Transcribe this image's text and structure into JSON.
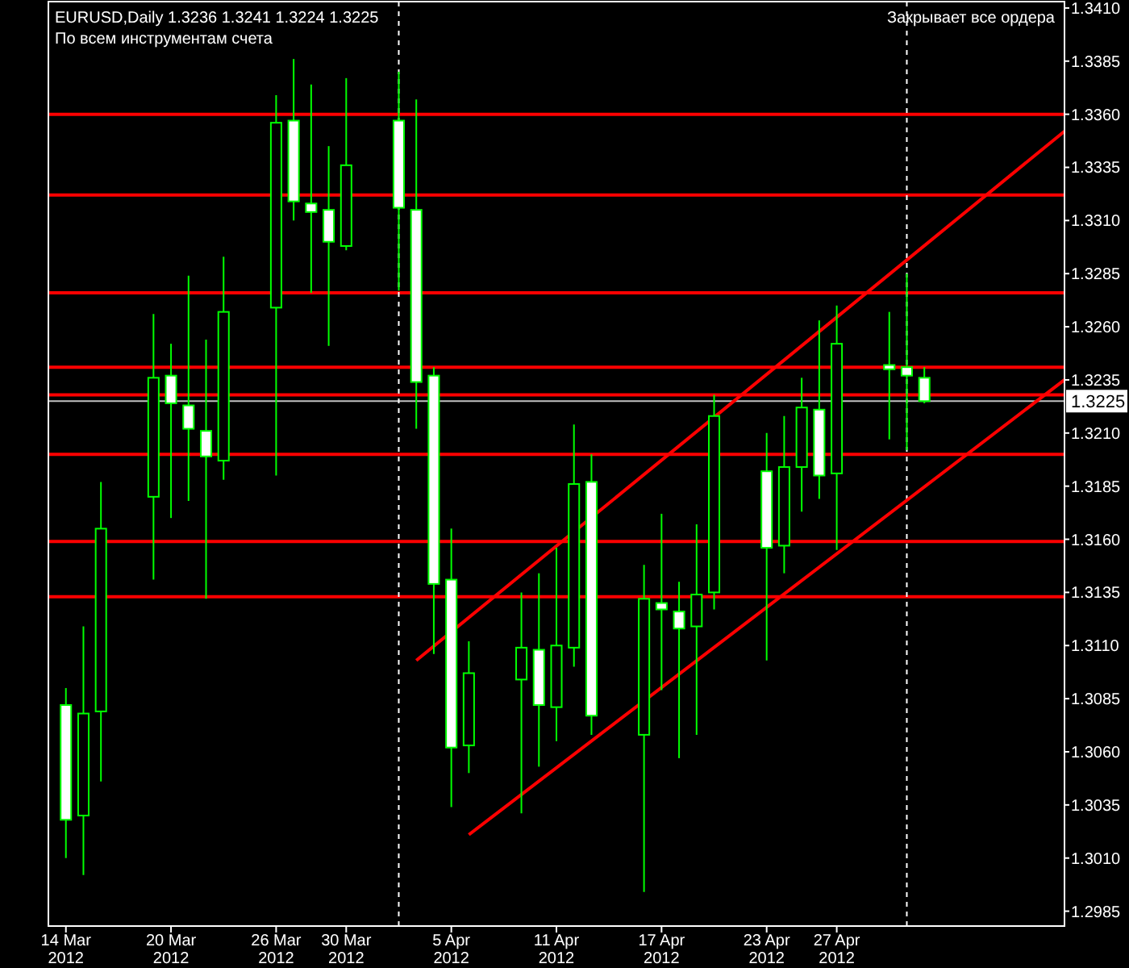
{
  "chart_data": {
    "type": "candlestick",
    "title": "EURUSD,Daily  1.3236 1.3241 1.3224 1.3225",
    "annotations": [
      "По всем инструментам счета",
      "Закрывает все ордера"
    ],
    "x": [
      "2012-03-14",
      "2012-03-15",
      "2012-03-16",
      "2012-03-19",
      "2012-03-20",
      "2012-03-21",
      "2012-03-22",
      "2012-03-23",
      "2012-03-26",
      "2012-03-27",
      "2012-03-28",
      "2012-03-29",
      "2012-03-30",
      "2012-04-02",
      "2012-04-03",
      "2012-04-04",
      "2012-04-05",
      "2012-04-06",
      "2012-04-09",
      "2012-04-10",
      "2012-04-11",
      "2012-04-12",
      "2012-04-13",
      "2012-04-16",
      "2012-04-17",
      "2012-04-18",
      "2012-04-19",
      "2012-04-20",
      "2012-04-23",
      "2012-04-24",
      "2012-04-25",
      "2012-04-26",
      "2012-04-27",
      "2012-04-30",
      "2012-05-01",
      "2012-05-02"
    ],
    "ohlc": [
      [
        1.3082,
        1.309,
        1.301,
        1.3028
      ],
      [
        1.303,
        1.3119,
        1.3002,
        1.3078
      ],
      [
        1.3079,
        1.3187,
        1.3046,
        1.3165
      ],
      [
        1.318,
        1.3266,
        1.3141,
        1.3236
      ],
      [
        1.3237,
        1.3252,
        1.317,
        1.3224
      ],
      [
        1.3223,
        1.3284,
        1.3178,
        1.3212
      ],
      [
        1.3211,
        1.3254,
        1.3132,
        1.3199
      ],
      [
        1.3197,
        1.3293,
        1.3188,
        1.3267
      ],
      [
        1.3269,
        1.3369,
        1.319,
        1.3356
      ],
      [
        1.3357,
        1.3386,
        1.331,
        1.3319
      ],
      [
        1.3318,
        1.3374,
        1.3276,
        1.3314
      ],
      [
        1.3315,
        1.3345,
        1.3251,
        1.33
      ],
      [
        1.3298,
        1.3377,
        1.3296,
        1.3336
      ],
      [
        1.3357,
        1.338,
        1.3277,
        1.3316
      ],
      [
        1.3315,
        1.3367,
        1.3212,
        1.3234
      ],
      [
        1.3237,
        1.3241,
        1.3106,
        1.3139
      ],
      [
        1.3141,
        1.3165,
        1.3034,
        1.3062
      ],
      [
        1.3063,
        1.3112,
        1.305,
        1.3097
      ],
      [
        1.3094,
        1.3135,
        1.3031,
        1.3109
      ],
      [
        1.3108,
        1.3144,
        1.3053,
        1.3082
      ],
      [
        1.3081,
        1.3156,
        1.3065,
        1.311
      ],
      [
        1.3109,
        1.3214,
        1.31,
        1.3186
      ],
      [
        1.3187,
        1.32,
        1.3068,
        1.3077
      ],
      [
        1.3068,
        1.3148,
        1.2994,
        1.3132
      ],
      [
        1.313,
        1.3172,
        1.3089,
        1.3127
      ],
      [
        1.3126,
        1.314,
        1.3057,
        1.3118
      ],
      [
        1.3119,
        1.3167,
        1.3068,
        1.3134
      ],
      [
        1.3135,
        1.3228,
        1.3127,
        1.3218
      ],
      [
        1.3192,
        1.321,
        1.3103,
        1.3156
      ],
      [
        1.3157,
        1.3218,
        1.3144,
        1.3194
      ],
      [
        1.3194,
        1.3236,
        1.3173,
        1.3222
      ],
      [
        1.3221,
        1.3263,
        1.3179,
        1.319
      ],
      [
        1.3191,
        1.327,
        1.3155,
        1.3252
      ],
      [
        1.3242,
        1.3267,
        1.3207,
        1.324
      ],
      [
        1.3241,
        1.3285,
        1.3202,
        1.3237
      ],
      [
        1.3236,
        1.3241,
        1.3224,
        1.3225
      ]
    ],
    "color": "#00ff00",
    "series": [
      {
        "type": "line",
        "color": "#ff0000",
        "x": [
          "2012-04-03",
          "2012-05-10"
        ],
        "values": [
          1.3103,
          1.3352
        ]
      },
      {
        "type": "line",
        "color": "#ff0000",
        "x": [
          "2012-04-06",
          "2012-05-10"
        ],
        "values": [
          1.3021,
          1.3235
        ]
      }
    ],
    "xlim": [
      "2012-03-13",
      "2012-05-10"
    ],
    "xticks": [
      {
        "value": "2012-03-14",
        "label": "14 Mar 2012"
      },
      {
        "value": "2012-03-20",
        "label": "20 Mar 2012"
      },
      {
        "value": "2012-03-26",
        "label": "26 Mar 2012"
      },
      {
        "value": "2012-03-30",
        "label": "30 Mar 2012"
      },
      {
        "value": "2012-04-05",
        "label": "5 Apr 2012"
      },
      {
        "value": "2012-04-11",
        "label": "11 Apr 2012"
      },
      {
        "value": "2012-04-17",
        "label": "17 Apr 2012"
      },
      {
        "value": "2012-04-23",
        "label": "23 Apr 2012"
      },
      {
        "value": "2012-04-27",
        "label": "27 Apr 2012"
      }
    ],
    "ylim": [
      1.2978,
      1.3413
    ],
    "yticks": [
      {
        "value": 1.2985,
        "label": "1.2985"
      },
      {
        "value": 1.301,
        "label": "1.3010"
      },
      {
        "value": 1.3035,
        "label": "1.3035"
      },
      {
        "value": 1.306,
        "label": "1.3060"
      },
      {
        "value": 1.3085,
        "label": "1.3085"
      },
      {
        "value": 1.311,
        "label": "1.3110"
      },
      {
        "value": 1.3135,
        "label": "1.3135"
      },
      {
        "value": 1.316,
        "label": "1.3160"
      },
      {
        "value": 1.3185,
        "label": "1.3185"
      },
      {
        "value": 1.321,
        "label": "1.3210"
      },
      {
        "value": 1.3235,
        "label": "1.3235"
      },
      {
        "value": 1.326,
        "label": "1.3260"
      },
      {
        "value": 1.3285,
        "label": "1.3285"
      },
      {
        "value": 1.331,
        "label": "1.3310"
      },
      {
        "value": 1.3335,
        "label": "1.3335"
      },
      {
        "value": 1.336,
        "label": "1.3360"
      },
      {
        "value": 1.3385,
        "label": "1.3385"
      },
      {
        "value": 1.341,
        "label": "1.3410"
      }
    ],
    "ref_lines": [
      {
        "axis": "y",
        "value": 1.336,
        "color": "#ff0000"
      },
      {
        "axis": "y",
        "value": 1.3322,
        "color": "#ff0000"
      },
      {
        "axis": "y",
        "value": 1.3276,
        "color": "#ff0000"
      },
      {
        "axis": "y",
        "value": 1.3241,
        "color": "#ff0000"
      },
      {
        "axis": "y",
        "value": 1.3228,
        "color": "#ff0000"
      },
      {
        "axis": "y",
        "value": 1.32,
        "color": "#ff0000"
      },
      {
        "axis": "y",
        "value": 1.3159,
        "color": "#ff0000"
      },
      {
        "axis": "y",
        "value": 1.3133,
        "color": "#ff0000"
      },
      {
        "axis": "y",
        "value": 1.3225,
        "label": "1.3225",
        "color": "#c0c0c0"
      },
      {
        "axis": "x",
        "value": "2012-04-02",
        "color": "#ffffff",
        "line_style": "dashed"
      },
      {
        "axis": "x",
        "value": "2012-05-01",
        "color": "#ffffff",
        "line_style": "dashed"
      }
    ],
    "grid": false
  }
}
